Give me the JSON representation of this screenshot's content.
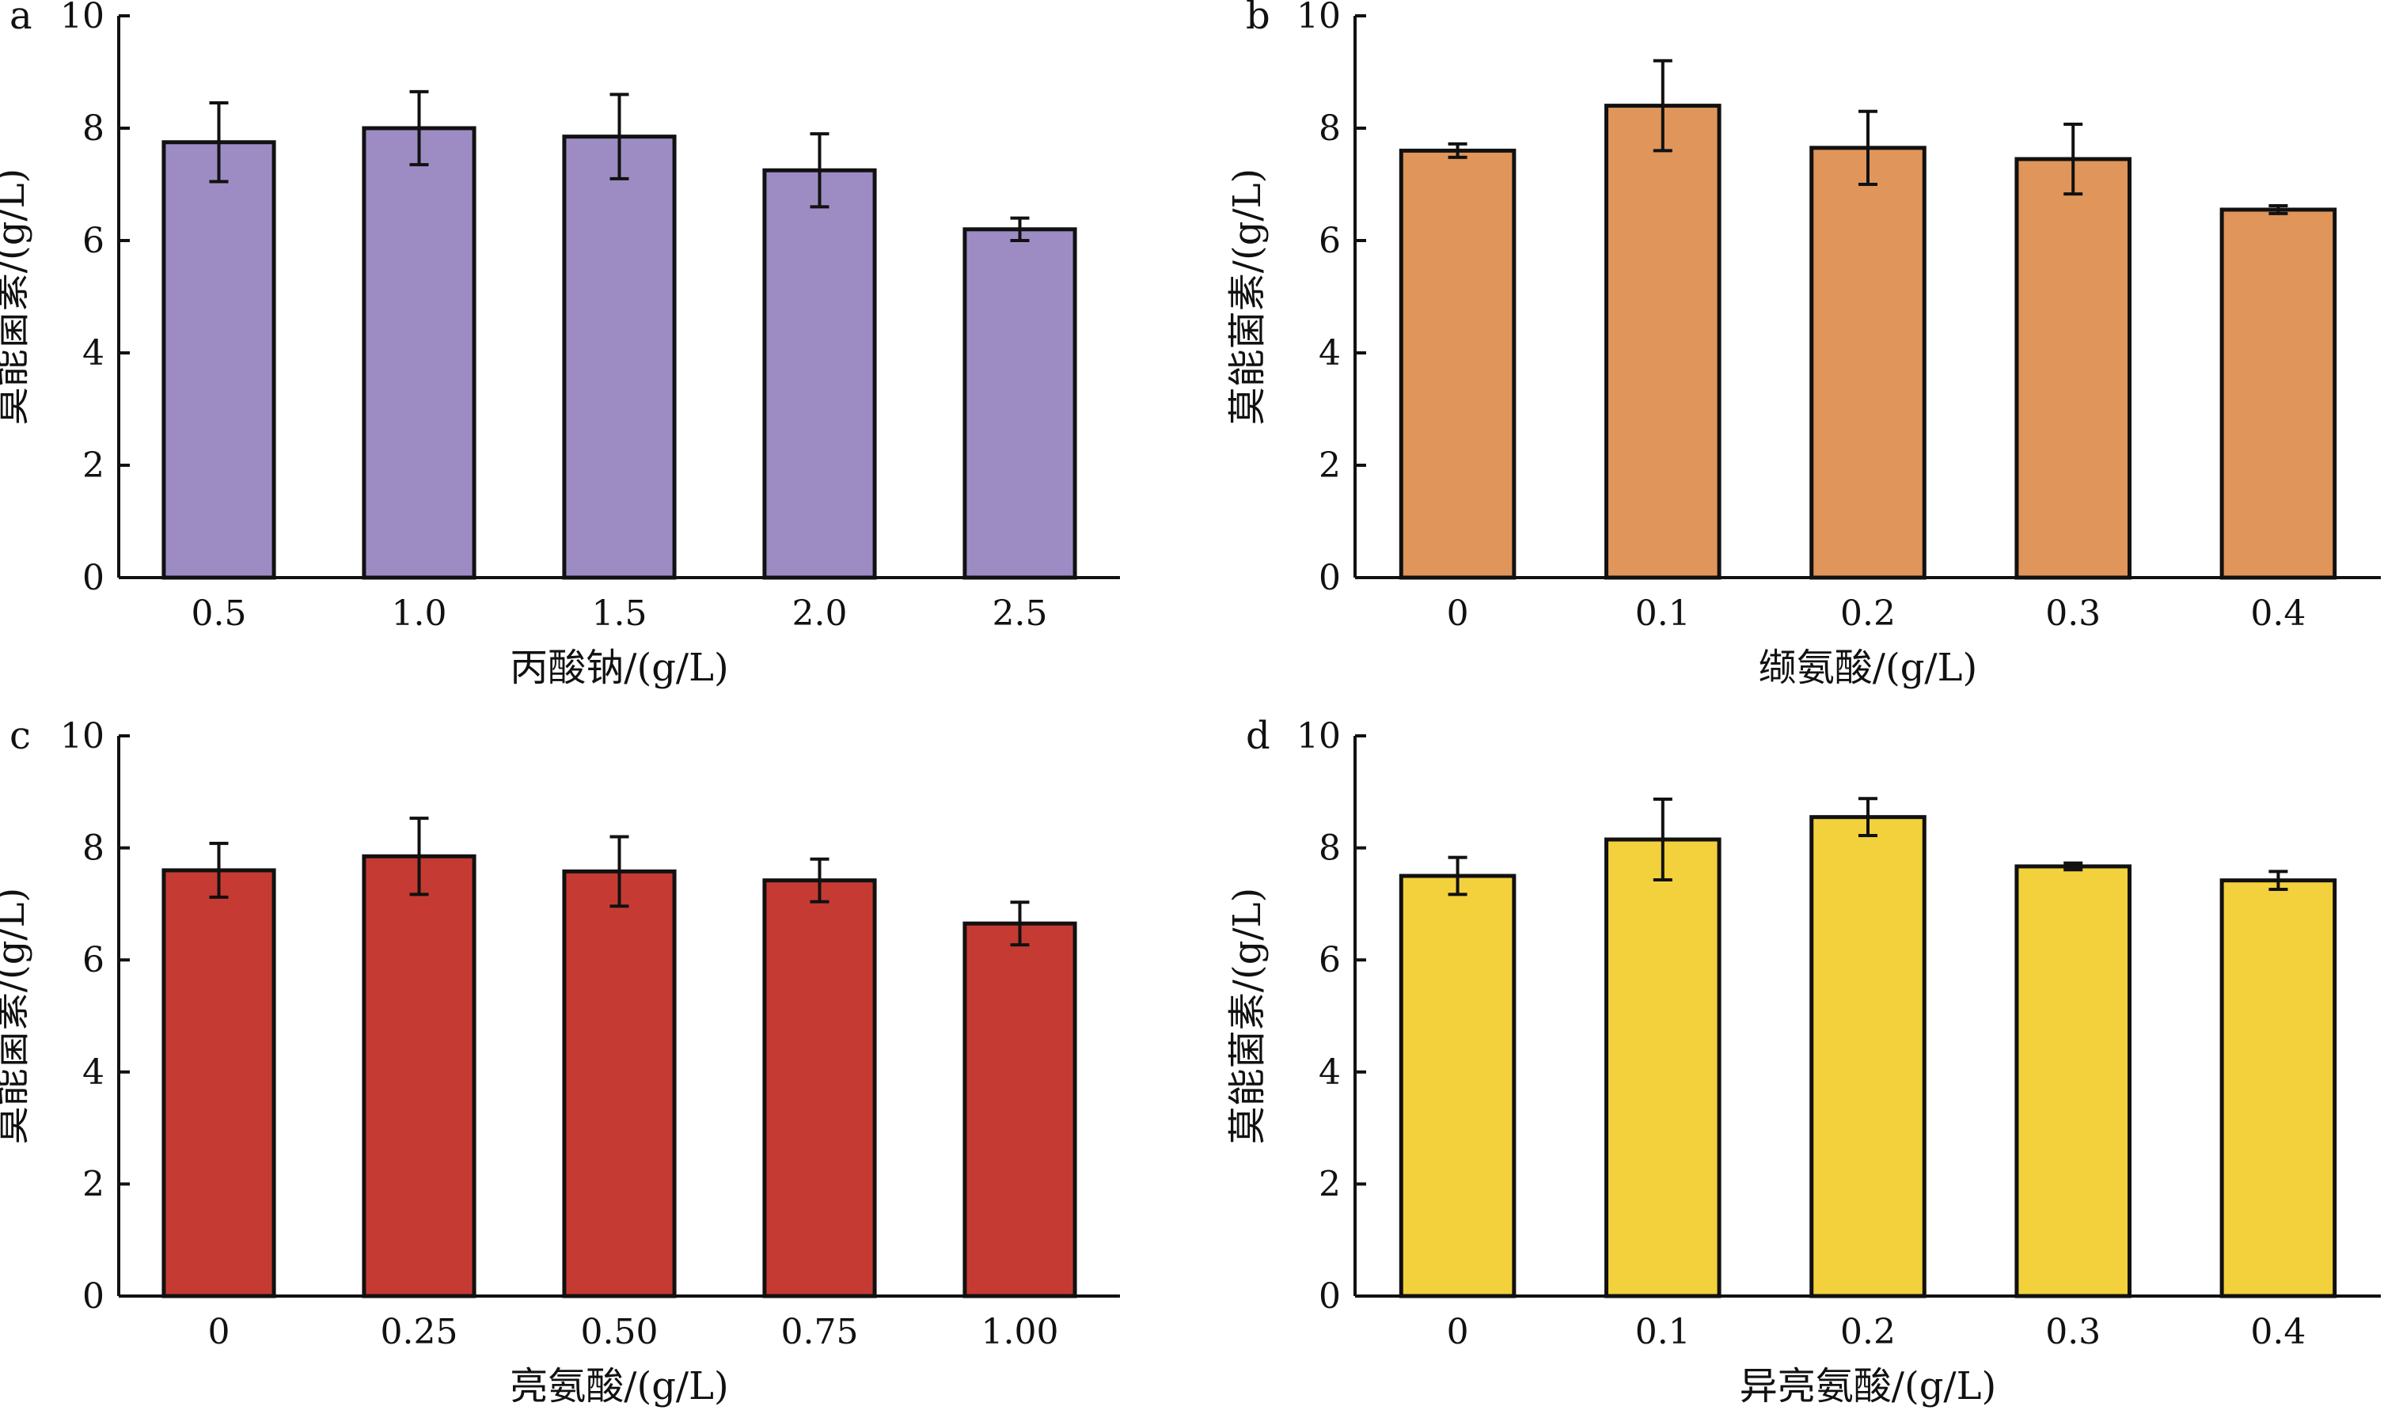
{
  "figure": {
    "panels": [
      {
        "letter": "a"
      },
      {
        "letter": "b"
      },
      {
        "letter": "c"
      },
      {
        "letter": "d"
      }
    ]
  },
  "chart_data": [
    {
      "type": "bar",
      "panel": "a",
      "categories": [
        "0.5",
        "1.0",
        "1.5",
        "2.0",
        "2.5"
      ],
      "values": [
        7.75,
        8.0,
        7.85,
        7.25,
        6.2
      ],
      "errors": [
        0.7,
        0.65,
        0.75,
        0.65,
        0.2
      ],
      "xlabel": "丙酸钠/(g/L)",
      "ylabel": "莫能菌素/(g/L)",
      "ylim": [
        0,
        10
      ],
      "yticks": [
        "0",
        "2",
        "4",
        "6",
        "8",
        "10"
      ],
      "color": "#9d8cc4",
      "grid": false
    },
    {
      "type": "bar",
      "panel": "b",
      "categories": [
        "0",
        "0.1",
        "0.2",
        "0.3",
        "0.4"
      ],
      "values": [
        7.6,
        8.4,
        7.65,
        7.45,
        6.55
      ],
      "errors": [
        0.12,
        0.8,
        0.65,
        0.62,
        0.07
      ],
      "xlabel": "缬氨酸/(g/L)",
      "ylabel": "莫能菌素/(g/L)",
      "ylim": [
        0,
        10
      ],
      "yticks": [
        "0",
        "2",
        "4",
        "6",
        "8",
        "10"
      ],
      "color": "#e0955a",
      "grid": false
    },
    {
      "type": "bar",
      "panel": "c",
      "categories": [
        "0",
        "0.25",
        "0.50",
        "0.75",
        "1.00"
      ],
      "values": [
        7.6,
        7.85,
        7.58,
        7.42,
        6.65
      ],
      "errors": [
        0.48,
        0.68,
        0.62,
        0.38,
        0.38
      ],
      "xlabel": "亮氨酸/(g/L)",
      "ylabel": "莫能菌素/(g/L)",
      "ylim": [
        0,
        10
      ],
      "yticks": [
        "0",
        "2",
        "4",
        "6",
        "8",
        "10"
      ],
      "color": "#c53b33",
      "grid": false
    },
    {
      "type": "bar",
      "panel": "d",
      "categories": [
        "0",
        "0.1",
        "0.2",
        "0.3",
        "0.4"
      ],
      "values": [
        7.5,
        8.15,
        8.55,
        7.67,
        7.42
      ],
      "errors": [
        0.33,
        0.72,
        0.33,
        0.06,
        0.16
      ],
      "xlabel": "异亮氨酸/(g/L)",
      "ylabel": "莫能菌素/(g/L)",
      "ylim": [
        0,
        10
      ],
      "yticks": [
        "0",
        "2",
        "4",
        "6",
        "8",
        "10"
      ],
      "color": "#f2d13c",
      "grid": false
    }
  ]
}
